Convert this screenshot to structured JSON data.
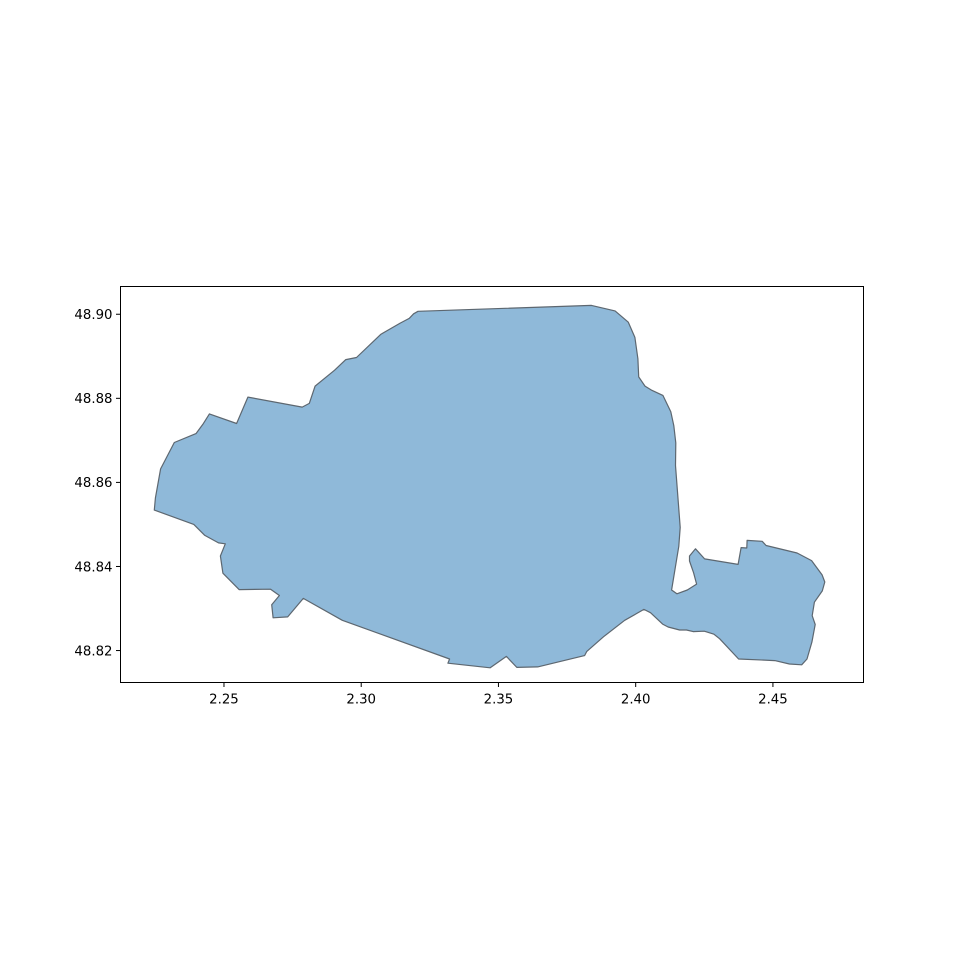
{
  "chart_data": {
    "type": "map",
    "title": "",
    "xlabel": "",
    "ylabel": "",
    "xlim": [
      2.2123,
      2.483
    ],
    "ylim": [
      48.8124,
      48.9066
    ],
    "x_ticks": [
      {
        "value": 2.25,
        "label": "2.25"
      },
      {
        "value": 2.3,
        "label": "2.30"
      },
      {
        "value": 2.35,
        "label": "2.35"
      },
      {
        "value": 2.4,
        "label": "2.40"
      },
      {
        "value": 2.45,
        "label": "2.45"
      }
    ],
    "y_ticks": [
      {
        "value": 48.82,
        "label": "48.82"
      },
      {
        "value": 48.84,
        "label": "48.84"
      },
      {
        "value": 48.86,
        "label": "48.86"
      },
      {
        "value": 48.88,
        "label": "48.88"
      },
      {
        "value": 48.9,
        "label": "48.90"
      }
    ],
    "grid": false,
    "polygon": {
      "fill_color": "#8fb9d9",
      "edge_color": "#5d6770",
      "coordinates": [
        [
          2.2246,
          48.8534
        ],
        [
          2.225,
          48.8563
        ],
        [
          2.2269,
          48.8632
        ],
        [
          2.2284,
          48.8651
        ],
        [
          2.2319,
          48.8695
        ],
        [
          2.2398,
          48.8716
        ],
        [
          2.2423,
          48.8738
        ],
        [
          2.2447,
          48.8763
        ],
        [
          2.2546,
          48.874
        ],
        [
          2.2587,
          48.8803
        ],
        [
          2.2785,
          48.8779
        ],
        [
          2.2811,
          48.8788
        ],
        [
          2.2832,
          48.8829
        ],
        [
          2.2903,
          48.8867
        ],
        [
          2.2944,
          48.8892
        ],
        [
          2.2983,
          48.8897
        ],
        [
          2.3071,
          48.8952
        ],
        [
          2.3142,
          48.8979
        ],
        [
          2.3175,
          48.899
        ],
        [
          2.3191,
          48.9001
        ],
        [
          2.3207,
          48.9007
        ],
        [
          2.3839,
          48.9021
        ],
        [
          2.3925,
          48.9008
        ],
        [
          2.3973,
          48.8981
        ],
        [
          2.3997,
          48.8945
        ],
        [
          2.4008,
          48.8894
        ],
        [
          2.4011,
          48.8851
        ],
        [
          2.4034,
          48.8829
        ],
        [
          2.4056,
          48.882
        ],
        [
          2.4099,
          48.8807
        ],
        [
          2.4128,
          48.8768
        ],
        [
          2.4139,
          48.8735
        ],
        [
          2.4146,
          48.8694
        ],
        [
          2.4145,
          48.864
        ],
        [
          2.4162,
          48.8493
        ],
        [
          2.4157,
          48.8448
        ],
        [
          2.4131,
          48.8344
        ],
        [
          2.415,
          48.8335
        ],
        [
          2.4188,
          48.8344
        ],
        [
          2.4222,
          48.8358
        ],
        [
          2.4211,
          48.8385
        ],
        [
          2.4196,
          48.8413
        ],
        [
          2.4196,
          48.8425
        ],
        [
          2.4218,
          48.8442
        ],
        [
          2.4251,
          48.8418
        ],
        [
          2.4373,
          48.8405
        ],
        [
          2.4384,
          48.8445
        ],
        [
          2.4405,
          48.8444
        ],
        [
          2.4406,
          48.8462
        ],
        [
          2.4461,
          48.846
        ],
        [
          2.4475,
          48.845
        ],
        [
          2.4588,
          48.8432
        ],
        [
          2.4641,
          48.8414
        ],
        [
          2.4679,
          48.838
        ],
        [
          2.4689,
          48.8363
        ],
        [
          2.468,
          48.8342
        ],
        [
          2.4651,
          48.8315
        ],
        [
          2.4643,
          48.8283
        ],
        [
          2.4654,
          48.8262
        ],
        [
          2.4642,
          48.822
        ],
        [
          2.4624,
          48.818
        ],
        [
          2.4605,
          48.8166
        ],
        [
          2.456,
          48.8168
        ],
        [
          2.4507,
          48.8176
        ],
        [
          2.4375,
          48.818
        ],
        [
          2.4306,
          48.8228
        ],
        [
          2.4285,
          48.8239
        ],
        [
          2.425,
          48.8246
        ],
        [
          2.4209,
          48.8245
        ],
        [
          2.4185,
          48.8249
        ],
        [
          2.416,
          48.8249
        ],
        [
          2.4118,
          48.8256
        ],
        [
          2.4098,
          48.8263
        ],
        [
          2.4054,
          48.829
        ],
        [
          2.403,
          48.8298
        ],
        [
          2.396,
          48.8272
        ],
        [
          2.3883,
          48.8233
        ],
        [
          2.3822,
          48.8198
        ],
        [
          2.3814,
          48.8188
        ],
        [
          2.3643,
          48.8161
        ],
        [
          2.3567,
          48.816
        ],
        [
          2.3529,
          48.8186
        ],
        [
          2.347,
          48.8159
        ],
        [
          2.3316,
          48.817
        ],
        [
          2.3322,
          48.818
        ],
        [
          2.2931,
          48.8272
        ],
        [
          2.2789,
          48.8324
        ],
        [
          2.2732,
          48.828
        ],
        [
          2.2679,
          48.8278
        ],
        [
          2.2674,
          48.8309
        ],
        [
          2.2702,
          48.8331
        ],
        [
          2.267,
          48.8346
        ],
        [
          2.2555,
          48.8345
        ],
        [
          2.2496,
          48.8384
        ],
        [
          2.2487,
          48.8425
        ],
        [
          2.2505,
          48.8454
        ],
        [
          2.248,
          48.8456
        ],
        [
          2.243,
          48.8474
        ],
        [
          2.239,
          48.85
        ],
        [
          2.2246,
          48.8534
        ]
      ]
    }
  }
}
